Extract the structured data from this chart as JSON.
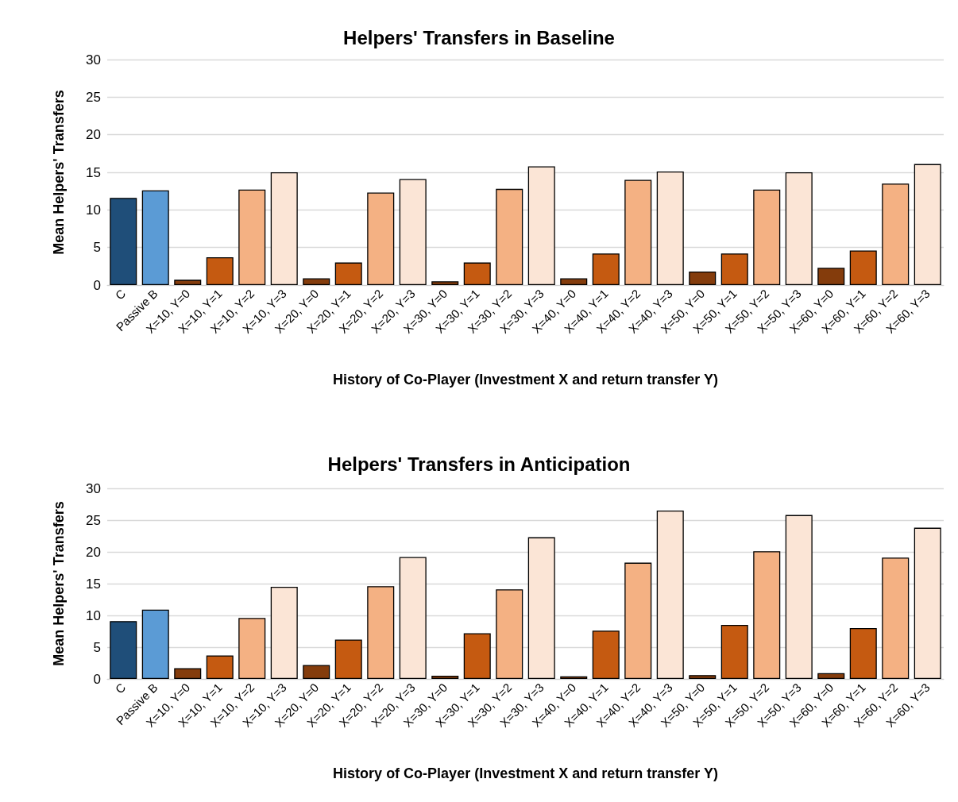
{
  "chart_data": [
    {
      "type": "bar",
      "title": "Helpers' Transfers in Baseline",
      "xlabel": "History of Co-Player (Investment X and return transfer Y)",
      "ylabel": "Mean Helpers' Transfers",
      "categories": [
        "C",
        "Passive B",
        "X=10, Y=0",
        "X=10, Y=1",
        "X=10, Y=2",
        "X=10, Y=3",
        "X=20, Y=0",
        "X=20, Y=1",
        "X=20, Y=2",
        "X=20, Y=3",
        "X=30, Y=0",
        "X=30, Y=1",
        "X=30, Y=2",
        "X=30, Y=3",
        "X=40, Y=0",
        "X=40, Y=1",
        "X=40, Y=2",
        "X=40, Y=3",
        "X=50, Y=0",
        "X=50, Y=1",
        "X=50, Y=2",
        "X=50, Y=3",
        "X=60, Y=0",
        "X=60, Y=1",
        "X=60, Y=2",
        "X=60, Y=3"
      ],
      "values": [
        11.6,
        12.6,
        0.7,
        3.7,
        12.7,
        15.0,
        0.9,
        3.0,
        12.3,
        14.1,
        0.5,
        3.0,
        12.8,
        15.8,
        0.9,
        4.2,
        14.0,
        15.1,
        1.8,
        4.2,
        12.7,
        15.0,
        2.3,
        4.6,
        13.5,
        16.1
      ],
      "colors": [
        "#1f4e79",
        "#5b9bd5",
        "#843c0c",
        "#c55a11",
        "#f4b183",
        "#fbe5d6",
        "#843c0c",
        "#c55a11",
        "#f4b183",
        "#fbe5d6",
        "#843c0c",
        "#c55a11",
        "#f4b183",
        "#fbe5d6",
        "#843c0c",
        "#c55a11",
        "#f4b183",
        "#fbe5d6",
        "#843c0c",
        "#c55a11",
        "#f4b183",
        "#fbe5d6",
        "#843c0c",
        "#c55a11",
        "#f4b183",
        "#fbe5d6"
      ],
      "ylim": [
        0,
        30
      ],
      "yticks": [
        0,
        5,
        10,
        15,
        20,
        25,
        30
      ],
      "grid": "y"
    },
    {
      "type": "bar",
      "title": "Helpers' Transfers in Anticipation",
      "xlabel": "History of Co-Player (Investment X and return transfer Y)",
      "ylabel": "Mean Helpers' Transfers",
      "categories": [
        "C",
        "Passive B",
        "X=10, Y=0",
        "X=10, Y=1",
        "X=10, Y=2",
        "X=10, Y=3",
        "X=20, Y=0",
        "X=20, Y=1",
        "X=20, Y=2",
        "X=20, Y=3",
        "X=30, Y=0",
        "X=30, Y=1",
        "X=30, Y=2",
        "X=30, Y=3",
        "X=40, Y=0",
        "X=40, Y=1",
        "X=40, Y=2",
        "X=40, Y=3",
        "X=50, Y=0",
        "X=50, Y=1",
        "X=50, Y=2",
        "X=50, Y=3",
        "X=60, Y=0",
        "X=60, Y=1",
        "X=60, Y=2",
        "X=60, Y=3"
      ],
      "values": [
        9.1,
        10.9,
        1.7,
        3.7,
        9.6,
        14.5,
        2.2,
        6.2,
        14.6,
        19.2,
        0.5,
        7.2,
        14.1,
        22.3,
        0.4,
        7.6,
        18.3,
        26.5,
        0.6,
        8.5,
        20.1,
        25.8,
        0.9,
        8.0,
        19.1,
        23.8
      ],
      "colors": [
        "#1f4e79",
        "#5b9bd5",
        "#843c0c",
        "#c55a11",
        "#f4b183",
        "#fbe5d6",
        "#843c0c",
        "#c55a11",
        "#f4b183",
        "#fbe5d6",
        "#843c0c",
        "#c55a11",
        "#f4b183",
        "#fbe5d6",
        "#843c0c",
        "#c55a11",
        "#f4b183",
        "#fbe5d6",
        "#843c0c",
        "#c55a11",
        "#f4b183",
        "#fbe5d6",
        "#843c0c",
        "#c55a11",
        "#f4b183",
        "#fbe5d6"
      ],
      "ylim": [
        0,
        30
      ],
      "yticks": [
        0,
        5,
        10,
        15,
        20,
        25,
        30
      ],
      "grid": "y"
    }
  ]
}
